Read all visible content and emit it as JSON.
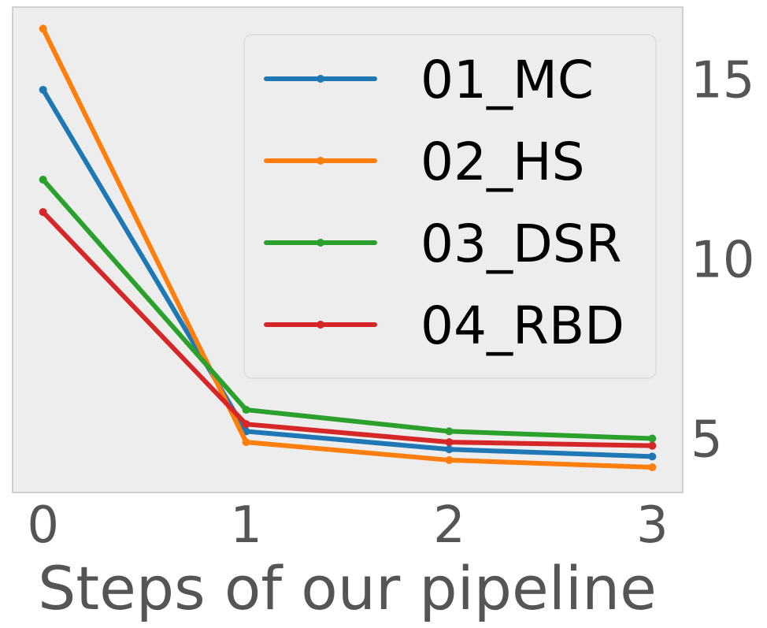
{
  "chart_data": {
    "type": "line",
    "x": [
      0,
      1,
      2,
      3
    ],
    "xticks": [
      "0",
      "1",
      "2",
      "3"
    ],
    "yticks": [
      "5",
      "10",
      "15"
    ],
    "xlabel": "Steps of our pipeline",
    "ylabel": "",
    "title": "",
    "xlim": [
      -0.15,
      3.15
    ],
    "ylim": [
      3.5,
      17
    ],
    "yaxis_position": "right",
    "grid": false,
    "legend_position": "top-right",
    "colors": {
      "background": "#ededed",
      "frame": "#c4c4c4",
      "tick_text": "#555555"
    },
    "series": [
      {
        "name": "01_MC",
        "color": "#1f77b4",
        "values": [
          14.7,
          5.2,
          4.7,
          4.5
        ]
      },
      {
        "name": "02_HS",
        "color": "#ff7f0e",
        "values": [
          16.4,
          4.9,
          4.4,
          4.2
        ]
      },
      {
        "name": "03_DSR",
        "color": "#2ca02c",
        "values": [
          12.2,
          5.8,
          5.2,
          5.0
        ]
      },
      {
        "name": "04_RBD",
        "color": "#d62728",
        "values": [
          11.3,
          5.4,
          4.9,
          4.8
        ]
      }
    ]
  }
}
